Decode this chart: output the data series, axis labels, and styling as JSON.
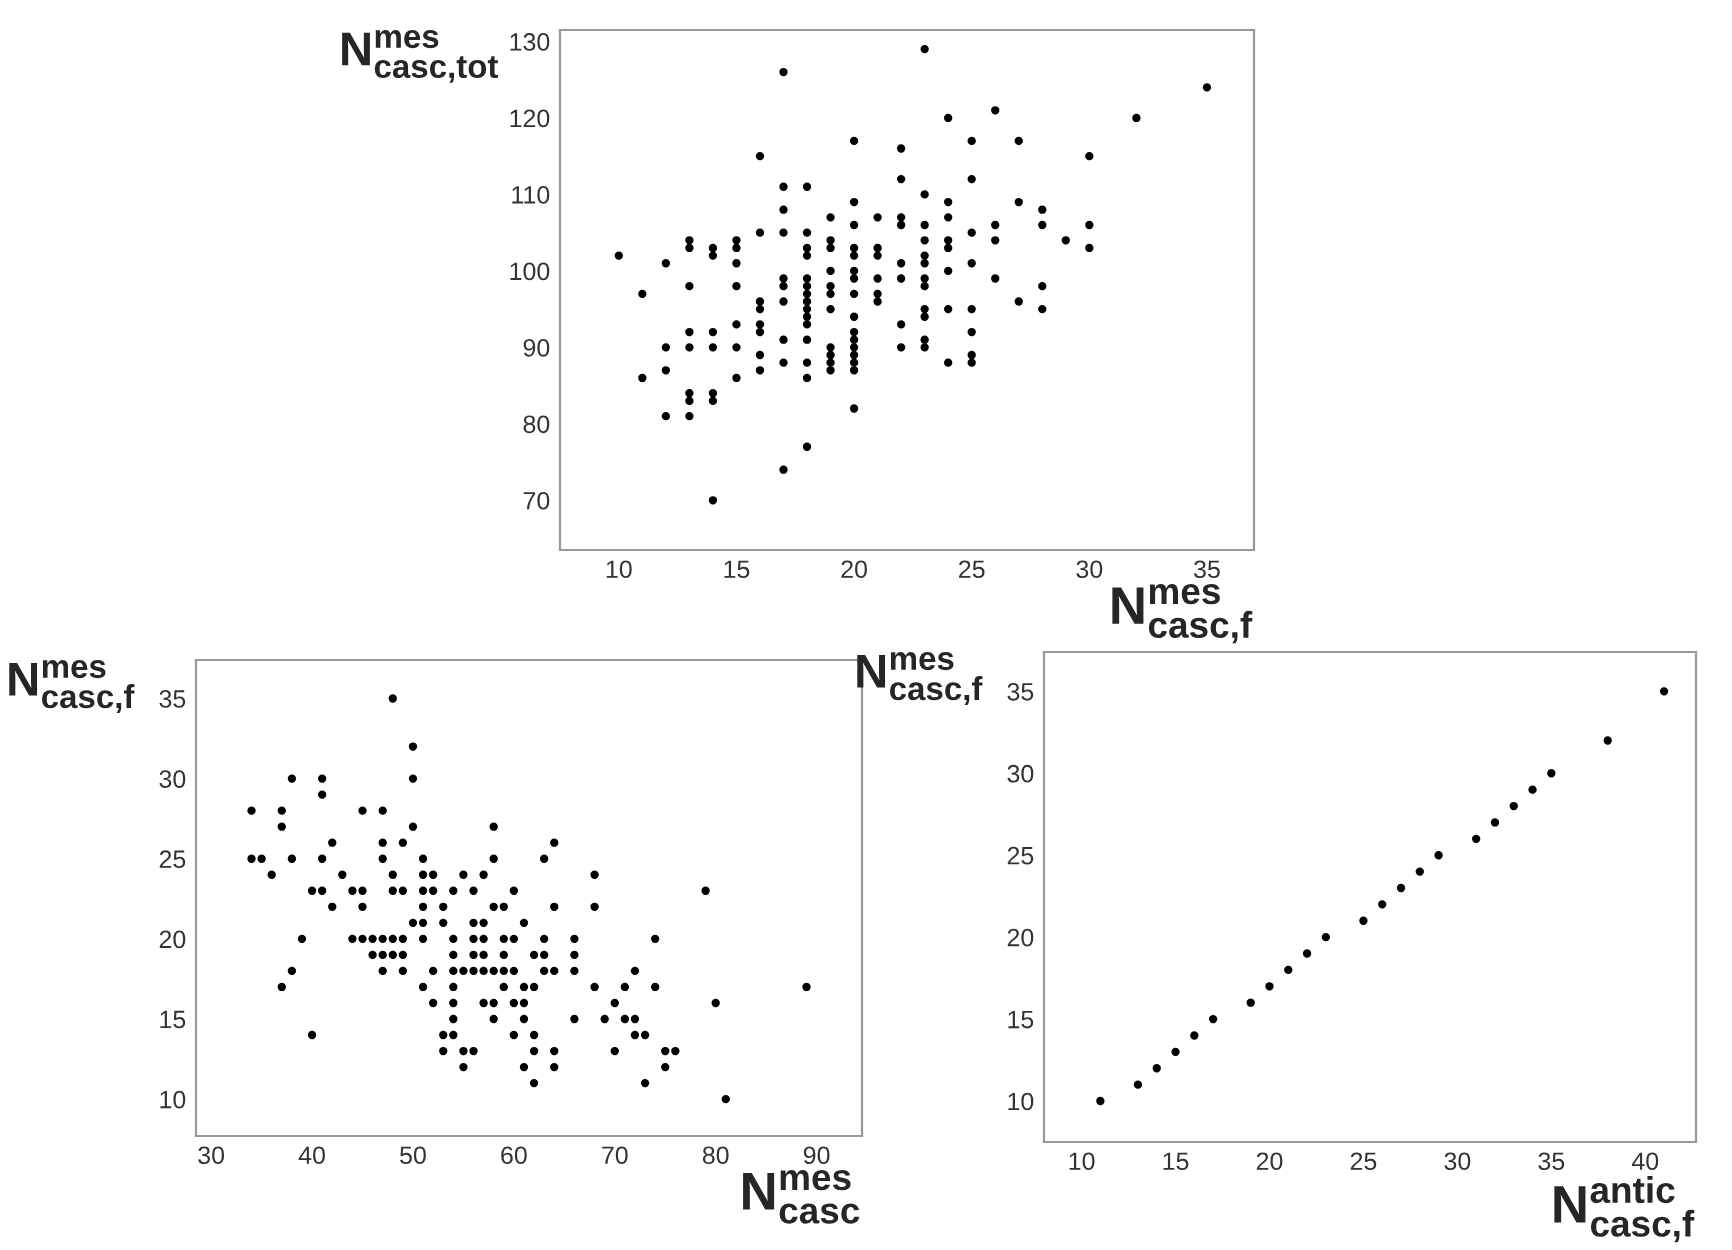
{
  "chart_data": [
    {
      "type": "scatter",
      "xlabel": "N$^{mes}$$_{casc,f}$",
      "ylabel": "N$^{mes}$$_{casc,tot}$",
      "xlim": [
        7.5,
        37
      ],
      "ylim": [
        63.5,
        131.5
      ],
      "xticks": [
        10,
        15,
        20,
        25,
        30,
        35
      ],
      "yticks": [
        70,
        80,
        90,
        100,
        110,
        120,
        130
      ],
      "grid": false,
      "marker": "circle",
      "series": [
        {
          "color": "#000000",
          "x": [
            10,
            11,
            11,
            12,
            12,
            12,
            12,
            13,
            13,
            13,
            13,
            13,
            13,
            13,
            13,
            14,
            14,
            14,
            14,
            14,
            14,
            14,
            15,
            15,
            15,
            15,
            15,
            15,
            15,
            16,
            16,
            16,
            16,
            16,
            16,
            16,
            16,
            17,
            17,
            17,
            17,
            17,
            17,
            17,
            17,
            17,
            17,
            18,
            18,
            18,
            18,
            18,
            18,
            18,
            18,
            18,
            18,
            18,
            18,
            18,
            18,
            18,
            19,
            19,
            19,
            19,
            19,
            19,
            19,
            19,
            19,
            19,
            19,
            20,
            20,
            20,
            20,
            20,
            20,
            20,
            20,
            20,
            20,
            20,
            20,
            20,
            20,
            20,
            20,
            21,
            21,
            21,
            21,
            21,
            21,
            22,
            22,
            22,
            22,
            22,
            22,
            22,
            22,
            23,
            23,
            23,
            23,
            23,
            23,
            23,
            23,
            23,
            23,
            23,
            23,
            24,
            24,
            24,
            24,
            24,
            24,
            24,
            24,
            25,
            25,
            25,
            25,
            25,
            25,
            25,
            25,
            26,
            26,
            26,
            26,
            27,
            27,
            27,
            28,
            28,
            28,
            28,
            29,
            30,
            30,
            30,
            32,
            35
          ],
          "values": [
            102,
            97,
            86,
            101,
            90,
            87,
            81,
            104,
            103,
            98,
            92,
            90,
            84,
            83,
            81,
            103,
            102,
            92,
            90,
            84,
            83,
            70,
            104,
            103,
            101,
            98,
            93,
            90,
            86,
            115,
            105,
            96,
            95,
            93,
            92,
            89,
            87,
            126,
            111,
            108,
            105,
            99,
            98,
            96,
            91,
            88,
            74,
            111,
            105,
            103,
            102,
            99,
            98,
            97,
            96,
            95,
            94,
            93,
            91,
            88,
            86,
            77,
            107,
            104,
            103,
            100,
            98,
            97,
            95,
            90,
            89,
            88,
            87,
            117,
            109,
            106,
            103,
            102,
            100,
            99,
            97,
            94,
            92,
            91,
            90,
            89,
            88,
            87,
            82,
            107,
            103,
            102,
            99,
            97,
            96,
            116,
            112,
            107,
            106,
            101,
            99,
            93,
            90,
            129,
            110,
            106,
            104,
            102,
            101,
            99,
            98,
            95,
            94,
            91,
            90,
            120,
            109,
            107,
            104,
            103,
            100,
            95,
            88,
            117,
            112,
            105,
            101,
            95,
            92,
            89,
            88,
            121,
            106,
            104,
            99,
            117,
            109,
            96,
            108,
            106,
            98,
            95,
            104,
            115,
            106,
            103,
            120,
            124
          ]
        }
      ]
    },
    {
      "type": "scatter",
      "xlabel": "N$^{mes}$$_{casc}$",
      "ylabel": "N$^{mes}$$_{casc,f}$",
      "xlim": [
        28.5,
        94.5
      ],
      "ylim": [
        7.7,
        37.4
      ],
      "xticks": [
        30,
        40,
        50,
        60,
        70,
        80,
        90
      ],
      "yticks": [
        10,
        15,
        20,
        25,
        30,
        35
      ],
      "grid": false,
      "marker": "circle",
      "series": [
        {
          "color": "#000000",
          "x": [
            34,
            34,
            35,
            36,
            37,
            37,
            37,
            38,
            38,
            38,
            39,
            40,
            40,
            41,
            41,
            41,
            41,
            42,
            42,
            43,
            44,
            44,
            45,
            45,
            45,
            45,
            46,
            46,
            47,
            47,
            47,
            47,
            47,
            47,
            48,
            48,
            48,
            48,
            48,
            49,
            49,
            49,
            49,
            49,
            50,
            50,
            50,
            50,
            51,
            51,
            51,
            51,
            51,
            51,
            51,
            52,
            52,
            52,
            52,
            53,
            53,
            53,
            53,
            54,
            54,
            54,
            54,
            54,
            54,
            54,
            54,
            55,
            55,
            55,
            55,
            56,
            56,
            56,
            56,
            56,
            56,
            57,
            57,
            57,
            57,
            57,
            57,
            58,
            58,
            58,
            58,
            58,
            58,
            59,
            59,
            59,
            59,
            59,
            60,
            60,
            60,
            60,
            60,
            61,
            61,
            61,
            61,
            61,
            62,
            62,
            62,
            62,
            62,
            63,
            63,
            63,
            63,
            64,
            64,
            64,
            64,
            64,
            66,
            66,
            66,
            66,
            68,
            68,
            68,
            69,
            70,
            70,
            71,
            71,
            72,
            72,
            72,
            73,
            73,
            74,
            74,
            75,
            75,
            76,
            79,
            80,
            81,
            89
          ],
          "values": [
            28,
            25,
            25,
            24,
            28,
            27,
            17,
            30,
            25,
            18,
            20,
            23,
            14,
            30,
            29,
            25,
            23,
            26,
            22,
            24,
            23,
            20,
            28,
            23,
            22,
            20,
            20,
            19,
            28,
            26,
            25,
            20,
            19,
            18,
            35,
            24,
            23,
            20,
            19,
            26,
            23,
            20,
            19,
            18,
            32,
            30,
            27,
            21,
            25,
            24,
            23,
            22,
            21,
            20,
            17,
            24,
            23,
            18,
            16,
            22,
            21,
            14,
            13,
            23,
            20,
            19,
            18,
            17,
            16,
            15,
            14,
            24,
            18,
            13,
            12,
            23,
            21,
            20,
            19,
            18,
            13,
            24,
            21,
            20,
            19,
            18,
            16,
            27,
            25,
            22,
            18,
            16,
            15,
            22,
            20,
            19,
            18,
            17,
            23,
            20,
            18,
            16,
            14,
            21,
            17,
            16,
            15,
            12,
            19,
            17,
            14,
            13,
            11,
            25,
            20,
            19,
            18,
            26,
            22,
            18,
            13,
            12,
            20,
            19,
            18,
            15,
            24,
            22,
            17,
            15,
            16,
            13,
            17,
            15,
            18,
            15,
            14,
            14,
            11,
            20,
            17,
            13,
            12,
            13,
            23,
            16,
            10,
            17
          ]
        }
      ]
    },
    {
      "type": "scatter",
      "xlabel": "N$^{antic}$$_{casc,f}$",
      "ylabel": "N$^{mes}$$_{casc,f}$",
      "xlim": [
        8,
        42.7
      ],
      "ylim": [
        7.5,
        37.4
      ],
      "xticks": [
        10,
        15,
        20,
        25,
        30,
        35,
        40
      ],
      "yticks": [
        10,
        15,
        20,
        25,
        30,
        35
      ],
      "grid": false,
      "marker": "circle",
      "series": [
        {
          "color": "#000000",
          "x": [
            11,
            13,
            14,
            15,
            16,
            17,
            19,
            20,
            21,
            22,
            23,
            25,
            26,
            27,
            28,
            29,
            31,
            32,
            33,
            34,
            35,
            38,
            41
          ],
          "values": [
            10,
            11,
            12,
            13,
            14,
            15,
            16,
            17,
            18,
            19,
            20,
            21,
            22,
            23,
            24,
            25,
            26,
            27,
            28,
            29,
            30,
            32,
            35
          ]
        }
      ]
    }
  ]
}
